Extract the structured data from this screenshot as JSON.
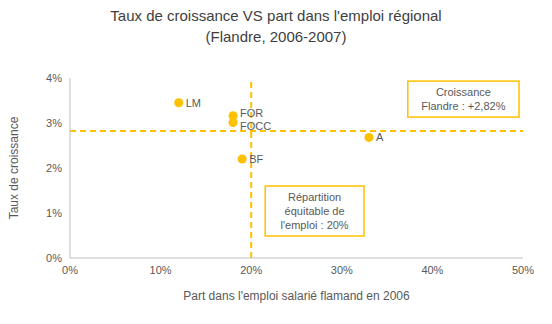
{
  "chart_data": {
    "type": "scatter",
    "title": "Taux de croissance VS part dans l'emploi régional\n(Flandre, 2006-2007)",
    "x_label": "Part dans l'emploi salarié flamand en 2006",
    "y_label": "Taux de croissance",
    "x": [
      12,
      18,
      18,
      19,
      33
    ],
    "values": [
      3.45,
      3.16,
      3.01,
      2.2,
      2.68
    ],
    "point_labels": [
      "LM",
      "FOR",
      "FOCC",
      "BF",
      "A"
    ],
    "color": "#FFC000",
    "marker": "circle",
    "xlim": [
      0,
      50
    ],
    "ylim": [
      0,
      4
    ],
    "xticks": [
      {
        "value": 0,
        "label": "0%"
      },
      {
        "value": 10,
        "label": "10%"
      },
      {
        "value": 20,
        "label": "20%"
      },
      {
        "value": 30,
        "label": "30%"
      },
      {
        "value": 40,
        "label": "40%"
      },
      {
        "value": 50,
        "label": "50%"
      }
    ],
    "yticks": [
      {
        "value": 0,
        "label": "0%"
      },
      {
        "value": 1,
        "label": "1%"
      },
      {
        "value": 2,
        "label": "2%"
      },
      {
        "value": 3,
        "label": "3%"
      },
      {
        "value": 4,
        "label": "4%"
      }
    ],
    "grid": false,
    "reference_lines": [
      {
        "axis": "y",
        "value": 2.82,
        "label": "Croissance\nFlandre : +2,82%",
        "line_style": "dashed",
        "color": "#FFC000"
      },
      {
        "axis": "x",
        "value": 20,
        "label": "Répartition\néquitable de\nl'emploi : 20%",
        "line_style": "dashed",
        "color": "#FFC000"
      }
    ]
  }
}
